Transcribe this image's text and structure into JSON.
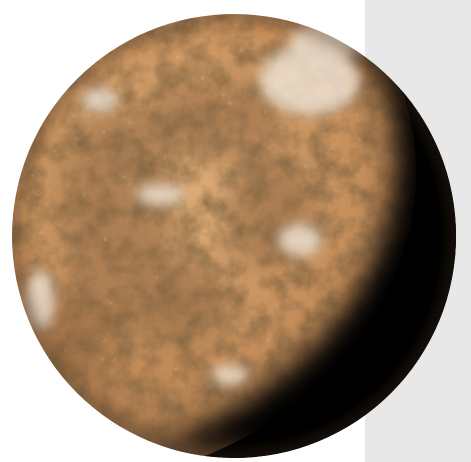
{
  "scene": {
    "subject": "planet-illustration",
    "background_color": "#ffffff",
    "panel_color": "#e8e8e8",
    "palette": {
      "surface_light": "#e2b27c",
      "surface_mid": "#c48d5a",
      "surface_dark": "#8c6440",
      "highlight": "#f4ede2",
      "shadow": "#000000"
    }
  }
}
